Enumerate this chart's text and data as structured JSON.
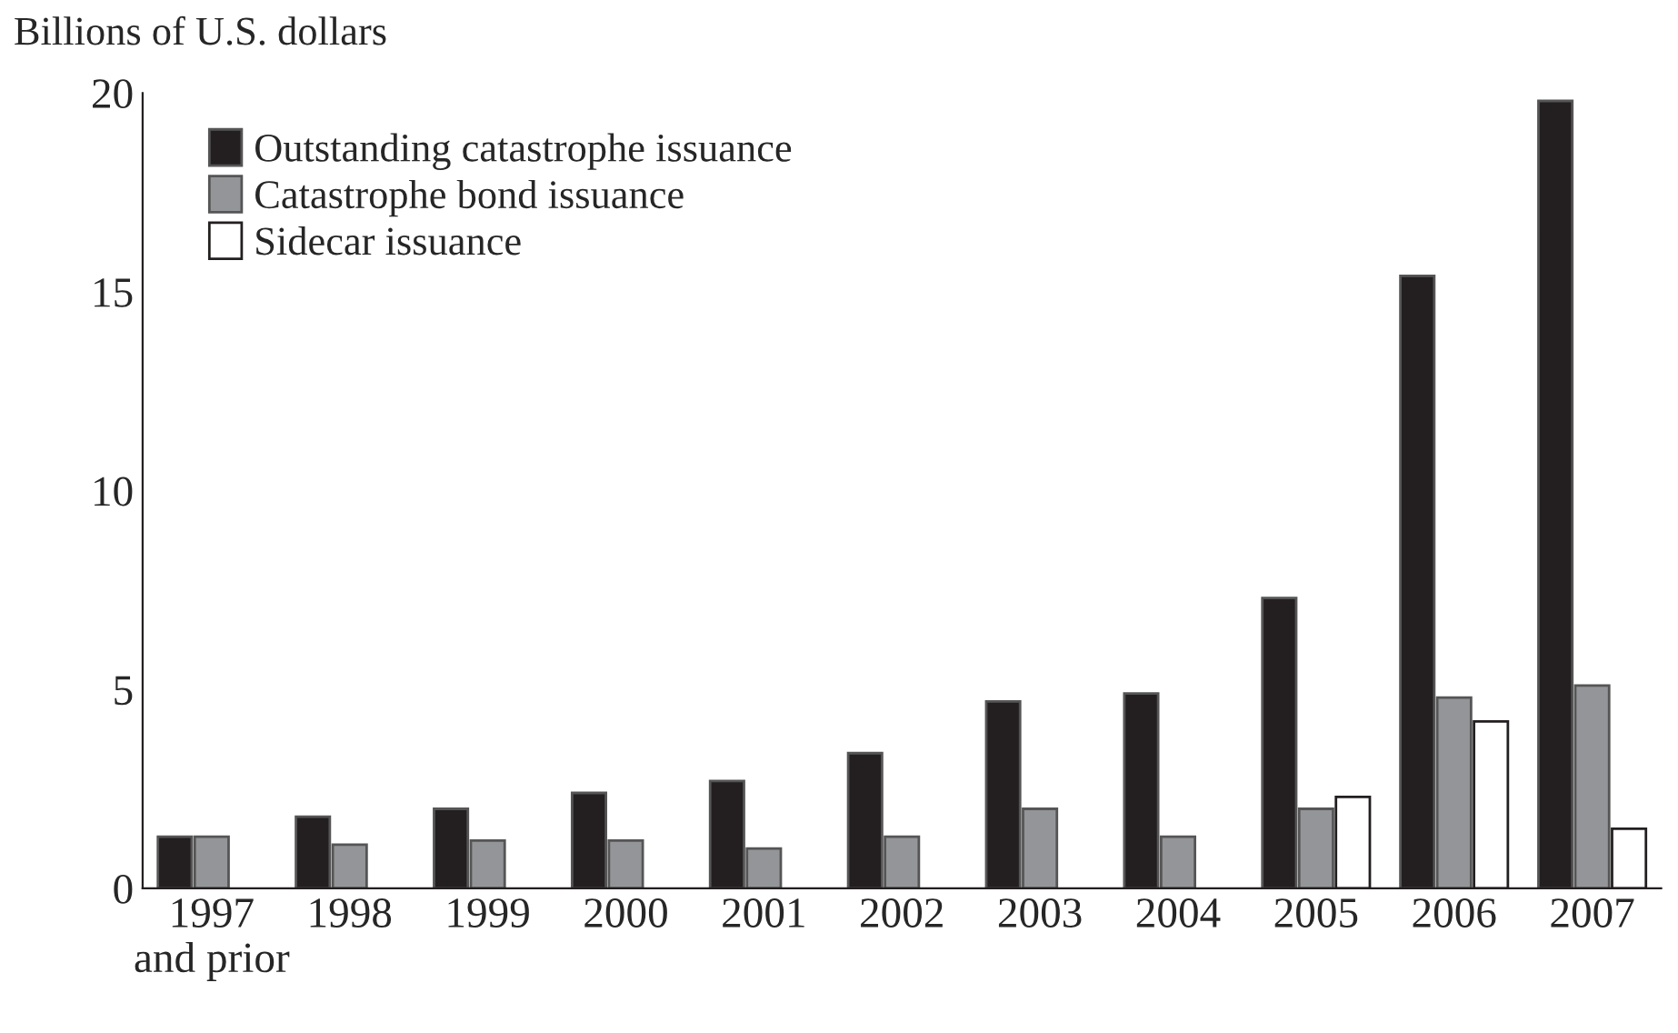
{
  "chart_data": {
    "type": "bar",
    "ylabel": "Billions of U.S. dollars",
    "categories": [
      "1997\nand prior",
      "1998",
      "1999",
      "2000",
      "2001",
      "2002",
      "2003",
      "2004",
      "2005",
      "2006",
      "2007"
    ],
    "series": [
      {
        "name": "Outstanding catastrophe issuance",
        "color": "#231f20",
        "values": [
          1.3,
          1.8,
          2.0,
          2.4,
          2.7,
          3.4,
          4.7,
          4.9,
          7.3,
          15.4,
          19.8
        ]
      },
      {
        "name": "Catastrophe bond issuance",
        "color": "#939598",
        "values": [
          1.3,
          1.1,
          1.2,
          1.2,
          1.0,
          1.3,
          2.0,
          1.3,
          2.0,
          4.8,
          5.1
        ]
      },
      {
        "name": "Sidecar issuance",
        "color": "#ffffff",
        "values": [
          null,
          null,
          null,
          null,
          null,
          null,
          null,
          null,
          2.3,
          4.2,
          1.5
        ]
      }
    ],
    "ylim": [
      0,
      20
    ],
    "yticks": [
      0,
      5,
      10,
      15,
      20
    ],
    "grid": false,
    "legend": "top left"
  }
}
